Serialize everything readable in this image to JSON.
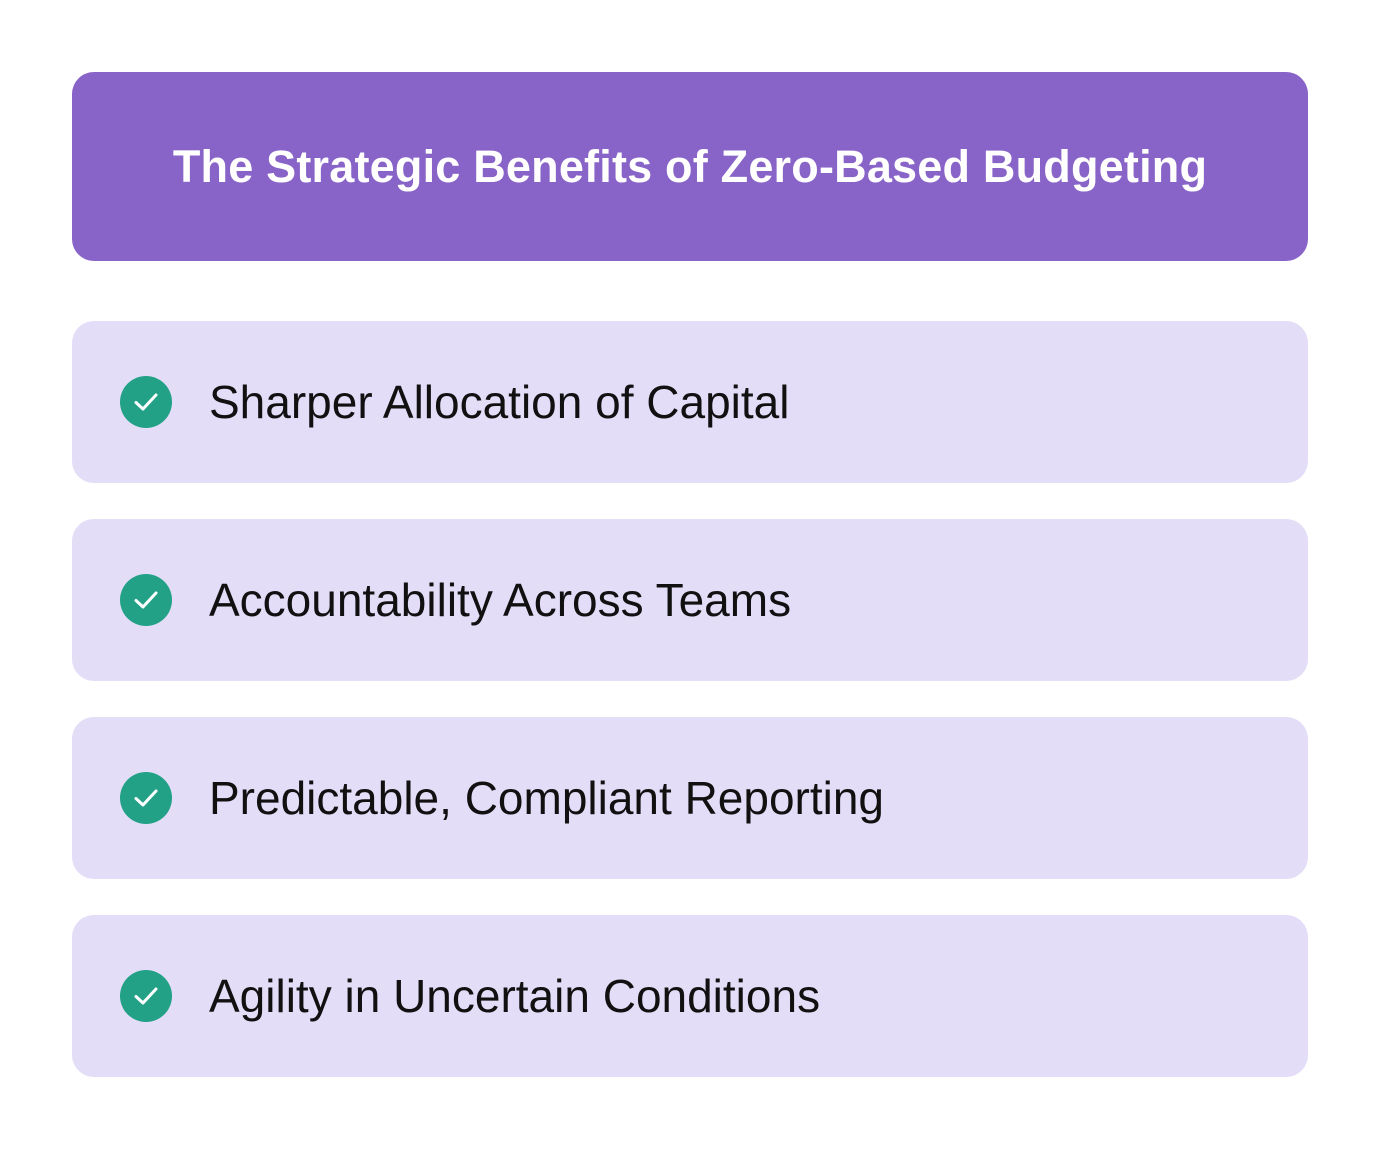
{
  "header": {
    "title": "The Strategic Benefits of Zero-Based Budgeting"
  },
  "benefits": [
    {
      "label": "Sharper Allocation of Capital",
      "icon": "check-circle-icon"
    },
    {
      "label": "Accountability Across Teams",
      "icon": "check-circle-icon"
    },
    {
      "label": "Predictable, Compliant Reporting",
      "icon": "check-circle-icon"
    },
    {
      "label": "Agility in Uncertain Conditions",
      "icon": "check-circle-icon"
    }
  ],
  "colors": {
    "header_bg": "#8964c8",
    "card_bg": "#e4ddf8",
    "check_green": "#22a187",
    "text": "#111111"
  }
}
